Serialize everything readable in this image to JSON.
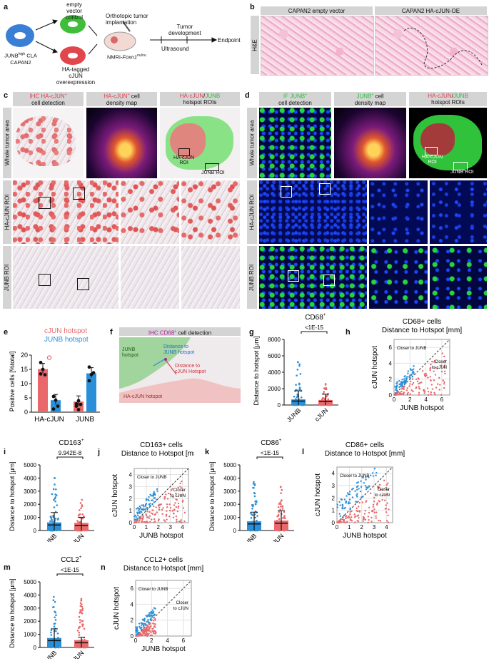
{
  "panel_a": {
    "letter": "a",
    "label_empty": "empty vector",
    "label_control": "control",
    "label_cell_line_1": "JUNB",
    "label_cell_line_sup": "high",
    "label_cell_line_2": " CLA",
    "label_cell_line_3": "CAPAN2",
    "label_ha_1": "HA-tagged cJUN",
    "label_ha_2": "overexpression",
    "label_ortho_1": "Orthotopic tumor",
    "label_ortho_2": "implantation",
    "label_mouse": "NMRi-",
    "label_mouse_gene": "Foxn1",
    "label_mouse_sup": "nu/nu",
    "label_dev_1": "Tumor",
    "label_dev_2": "development",
    "label_ultrasound": "Ultrasound",
    "label_endpoint": "Endpoint"
  },
  "panel_b": {
    "letter": "b",
    "col1": "CAPAN2 empty vector",
    "col2": "CAPAN2 HA-cJUN-OE",
    "row": "H&E"
  },
  "panel_c": {
    "letter": "c",
    "h1a": "IHC HA-cJUN",
    "h1sup": "+",
    "h1b": "cell detection",
    "h2a": "HA-cJUN",
    "h2sup": "+",
    "h2b": " cell",
    "h2c": "density map",
    "h3a": "HA-cJUN",
    "h3sep": "/",
    "h3b": "JUNB",
    "h3c": "hotspot ROIs",
    "row1": "Whole tumor area",
    "row2": "HA-cJUN ROI",
    "row3": "JUNB ROI",
    "roi_cjun": "HA-cJUN",
    "roi_cjun2": "ROI",
    "roi_junb": "JUNB ROI"
  },
  "panel_d": {
    "letter": "d",
    "h1a": "IF JUNB",
    "h1sup": "+",
    "h1b": "cell detection",
    "h2a": "JUNB",
    "h2sup": "+",
    "h2b": " cell",
    "h2c": "density map",
    "h3a": "HA-cJUN",
    "h3sep": "/",
    "h3b": "JUNB",
    "h3c": "hotspot ROIs",
    "row1": "Whole tumor area",
    "row2": "HA-cJUN ROI",
    "row3": "JUNB ROI",
    "roi_cjun": "HA-cJUN",
    "roi_cjun2": "ROI",
    "roi_junb": "JUNB ROI"
  },
  "panel_e": {
    "letter": "e",
    "legend_cjun": "cJUN hotspot",
    "legend_junb": "JUNB hotspot"
  },
  "panel_f": {
    "letter": "f",
    "title_a": "IHC CD68",
    "title_sup": "+",
    "title_b": " cell detection",
    "junb_1": "JUNB",
    "junb_2": "hotspot",
    "dist_junb_1": "Distance to",
    "dist_junb_2": "JUNB hotspot",
    "dist_cjun_1": "Distance to",
    "dist_cjun_2": "cJUN Hotspot",
    "hacjun": "HA-cJUN hotspot"
  },
  "colors": {
    "cjun": "#e8686b",
    "junb": "#2a8fd8",
    "ihc_red": "#e0404a",
    "if_green": "#22c23a",
    "magenta": "#b01e9a"
  },
  "chart_data": [
    {
      "panel": "e",
      "type": "bar",
      "ylabel": "Positive cells [%total]",
      "categories": [
        "HA-cJUN",
        "JUNB"
      ],
      "ylim": [
        0,
        20
      ],
      "yticks": [
        0,
        5,
        10,
        15,
        20
      ],
      "series": [
        {
          "name": "cJUN hotspot",
          "values": [
            15.1,
            3.7
          ],
          "points": [
            [
              17.4,
              15.0,
              13.1,
              13.4
            ],
            [
              2.9,
              4.0,
              2.7,
              2.1,
              0.9
            ]
          ],
          "outlier": [
            19.1
          ]
        },
        {
          "name": "JUNB hotspot",
          "values": [
            4.2,
            13.6
          ],
          "points": [
            [
              5.5,
              4.2,
              2.1,
              1.1
            ],
            [
              15.8,
              13.2,
              13.8,
              11.0
            ]
          ]
        }
      ]
    },
    {
      "panel": "g",
      "type": "scatter",
      "title": "CD68",
      "title_sup": "+",
      "pvalue": "<1E-15",
      "ylabel": "Distance to hotspot [μm]",
      "categories": [
        "JUNB",
        "cJUN"
      ],
      "ylim": [
        0,
        8000
      ],
      "yticks": [
        0,
        2000,
        4000,
        6000,
        8000
      ],
      "max": [
        6000,
        2800
      ],
      "mean": [
        480,
        420
      ],
      "sd": [
        1250,
        900
      ]
    },
    {
      "panel": "h",
      "type": "scatter",
      "title": "CD68",
      "title_sup": "+",
      "title_b": " cells",
      "subtitle": "Distance to Hotspot [mm]",
      "xlabel": "JUNB hotspot",
      "ylabel": "cJUN hotspot",
      "xlim": [
        0,
        7
      ],
      "ylim": [
        0,
        7
      ],
      "ticks": [
        0,
        2,
        4,
        6
      ],
      "note_junb": "Closer to JUNB",
      "note_cjun_1": "Closer",
      "note_cjun_2": "to cJUN"
    },
    {
      "panel": "i",
      "type": "scatter",
      "title": "CD163",
      "title_sup": "+",
      "pvalue": "9.942E-8",
      "ylabel": "Distance to hotspot [μm]",
      "categories": [
        "JUNB",
        "cJUN"
      ],
      "ylim": [
        0,
        5000
      ],
      "yticks": [
        0,
        1000,
        2000,
        3000,
        4000,
        5000
      ],
      "max": [
        4500,
        2600
      ],
      "mean": [
        420,
        380
      ],
      "sd": [
        950,
        620
      ]
    },
    {
      "panel": "j",
      "type": "scatter",
      "title": "CD163",
      "title_sup": "+",
      "title_b": " cells",
      "subtitle": "Distance to Hotspot [mm]",
      "xlabel": "JUNB hotspot",
      "ylabel": "cJUN hotspot",
      "xlim": [
        0,
        4.5
      ],
      "ylim": [
        0,
        4.5
      ],
      "ticks": [
        0,
        1,
        2,
        3,
        4
      ],
      "note_junb": "Closer to JUNB",
      "note_cjun_1": "Closer",
      "note_cjun_2": "to cJUN"
    },
    {
      "panel": "k",
      "type": "scatter",
      "title": "CD86",
      "title_sup": "+",
      "pvalue": "<1E-15",
      "ylabel": "Distance to hotspot [μm]",
      "categories": [
        "JUNB",
        "cJUN"
      ],
      "ylim": [
        0,
        5000
      ],
      "yticks": [
        0,
        1000,
        2000,
        3000,
        4000,
        5000
      ],
      "max": [
        3800,
        3600
      ],
      "mean": [
        500,
        560
      ],
      "sd": [
        900,
        950
      ]
    },
    {
      "panel": "l",
      "type": "scatter",
      "title": "CD86",
      "title_sup": "+",
      "title_b": " cells",
      "subtitle": "Distance to Hotspot [mm]",
      "xlabel": "JUNB hotspot",
      "ylabel": "cJUN hotspot",
      "xlim": [
        0,
        4.5
      ],
      "ylim": [
        0,
        4.5
      ],
      "ticks": [
        0,
        1,
        2,
        3,
        4
      ],
      "note_junb": "Closer to JUNB",
      "note_cjun_1": "Closer",
      "note_cjun_2": "to cJUN"
    },
    {
      "panel": "m",
      "type": "scatter",
      "title": "CCL2",
      "title_sup": "+",
      "pvalue": "<1E-15",
      "ylabel": "Distance to hotspot [μm]",
      "categories": [
        "JUNB",
        "cJUN"
      ],
      "ylim": [
        0,
        5000
      ],
      "yticks": [
        0,
        1000,
        2000,
        3000,
        4000,
        5000
      ],
      "max": [
        4000,
        3800
      ],
      "mean": [
        520,
        360
      ],
      "sd": [
        900,
        420
      ]
    },
    {
      "panel": "n",
      "type": "scatter",
      "title": "CCL2",
      "title_sup": "+",
      "title_b": " cells",
      "subtitle": "Distance to Hotspot [mm]",
      "xlabel": "JUNB hotspot",
      "ylabel": "cJUN hotspot",
      "xlim": [
        0,
        7
      ],
      "ylim": [
        0,
        7
      ],
      "ticks": [
        0,
        2,
        4,
        6
      ],
      "note_junb": "Closer to JUNB",
      "note_cjun_1": "Closer",
      "note_cjun_2": "to cJUN"
    }
  ]
}
